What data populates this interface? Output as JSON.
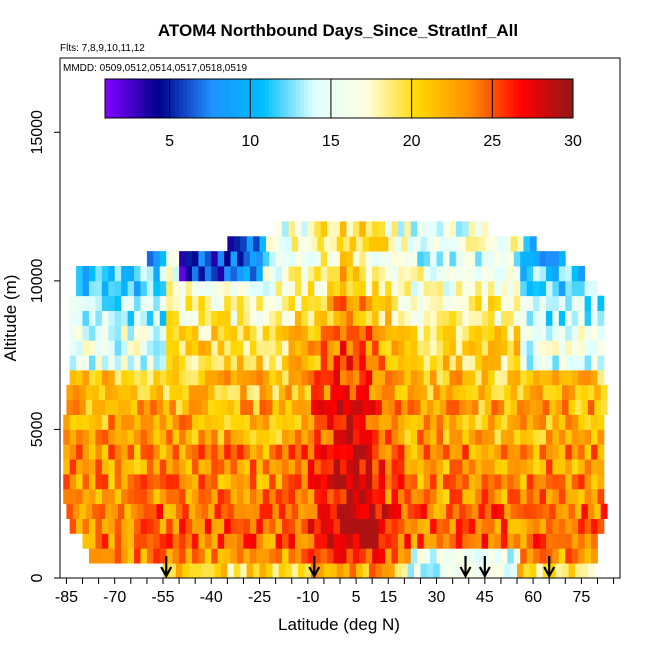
{
  "chart_data": {
    "type": "heatmap",
    "title": "ATOM4 Northbound Days_Since_StratInf_All",
    "flights_note": "Flts: 7,8,9,10,11,12",
    "dates_note": "MMDD: 0509,0512,0514,0517,0518,0519",
    "xlabel": "Latitude (deg N)",
    "ylabel": "Altitude (m)",
    "xlim": [
      -87,
      87
    ],
    "ylim": [
      0,
      17500
    ],
    "x_ticks": [
      -85,
      -70,
      -55,
      -40,
      -25,
      -10,
      5,
      15,
      30,
      45,
      60,
      75
    ],
    "x_tick_labels": [
      "-85",
      "-70",
      "-55",
      "-40",
      "-25",
      "-10",
      "5",
      "15",
      "30",
      "45",
      "60",
      "75"
    ],
    "x_minor_step": 5,
    "y_ticks": [
      0,
      5000,
      10000,
      15000
    ],
    "y_tick_labels": [
      "0",
      "5000",
      "10000",
      "15000"
    ],
    "colorbar": {
      "min": 1,
      "max": 30,
      "ticks": [
        5,
        10,
        15,
        20,
        25,
        30
      ],
      "tick_labels": [
        "5",
        "10",
        "15",
        "20",
        "25",
        "30"
      ],
      "colors": [
        "#8000ff",
        "#00008b",
        "#1e90ff",
        "#00bfff",
        "#e0ffff",
        "#ffffe0",
        "#ffd700",
        "#ff8c00",
        "#ff0000",
        "#8b1a1a"
      ]
    },
    "altitude_bins_m": [
      500,
      1000,
      1500,
      2000,
      2500,
      3000,
      3500,
      4000,
      4500,
      5000,
      5500,
      6000,
      6500,
      7000,
      7500,
      8000,
      8500,
      9000,
      9500,
      10000,
      10500,
      11000,
      11500,
      12000
    ],
    "latitude_coverage_deg": [
      [
        -55,
        78
      ],
      [
        -78,
        80
      ],
      [
        -80,
        80
      ],
      [
        -84,
        82
      ],
      [
        -85,
        82
      ],
      [
        -86,
        82
      ],
      [
        -86,
        82
      ],
      [
        -86,
        82
      ],
      [
        -86,
        82
      ],
      [
        -86,
        82
      ],
      [
        -86,
        82
      ],
      [
        -85,
        82
      ],
      [
        -85,
        82
      ],
      [
        -84,
        82
      ],
      [
        -84,
        82
      ],
      [
        -84,
        82
      ],
      [
        -84,
        82
      ],
      [
        -84,
        82
      ],
      [
        -84,
        82
      ],
      [
        -82,
        80
      ],
      [
        -82,
        76
      ],
      [
        -60,
        70
      ],
      [
        -35,
        60
      ],
      [
        -20,
        45
      ]
    ],
    "mean_days_by_altitude": [
      20,
      23,
      24,
      24,
      24,
      23,
      23,
      23,
      23,
      22,
      22,
      22,
      21,
      21,
      20,
      20,
      20,
      18,
      18,
      16,
      16,
      14,
      16,
      15
    ],
    "core_latitude_deg": 2,
    "core_max_days": 29,
    "upper_blue_region": {
      "lat_range": [
        -50,
        -25
      ],
      "alt_range_m": [
        10500,
        11500
      ],
      "min_days": 4
    },
    "blue_high_latitude_values": 13,
    "northbound_markers_lat": [
      -54,
      -8,
      39,
      45,
      65
    ],
    "samples_days": [
      {
        "lat": -45,
        "alt": 500,
        "v": 17
      },
      {
        "lat": -20,
        "alt": 500,
        "v": 24
      },
      {
        "lat": 0,
        "alt": 500,
        "v": 27
      },
      {
        "lat": 40,
        "alt": 500,
        "v": 15
      },
      {
        "lat": 65,
        "alt": 500,
        "v": 27
      },
      {
        "lat": -70,
        "alt": 3000,
        "v": 25
      },
      {
        "lat": -30,
        "alt": 3000,
        "v": 26
      },
      {
        "lat": 0,
        "alt": 3000,
        "v": 28
      },
      {
        "lat": 30,
        "alt": 3000,
        "v": 25
      },
      {
        "lat": 70,
        "alt": 3000,
        "v": 25
      },
      {
        "lat": -70,
        "alt": 6000,
        "v": 22
      },
      {
        "lat": -30,
        "alt": 6000,
        "v": 22
      },
      {
        "lat": 0,
        "alt": 6000,
        "v": 28
      },
      {
        "lat": 40,
        "alt": 6000,
        "v": 22
      },
      {
        "lat": 70,
        "alt": 6000,
        "v": 21
      },
      {
        "lat": -70,
        "alt": 9000,
        "v": 14
      },
      {
        "lat": -30,
        "alt": 9000,
        "v": 21
      },
      {
        "lat": 0,
        "alt": 9000,
        "v": 26
      },
      {
        "lat": 40,
        "alt": 9000,
        "v": 19
      },
      {
        "lat": 70,
        "alt": 9000,
        "v": 14
      },
      {
        "lat": -40,
        "alt": 11000,
        "v": 6
      },
      {
        "lat": 0,
        "alt": 11500,
        "v": 18
      },
      {
        "lat": 40,
        "alt": 11500,
        "v": 14
      }
    ]
  }
}
